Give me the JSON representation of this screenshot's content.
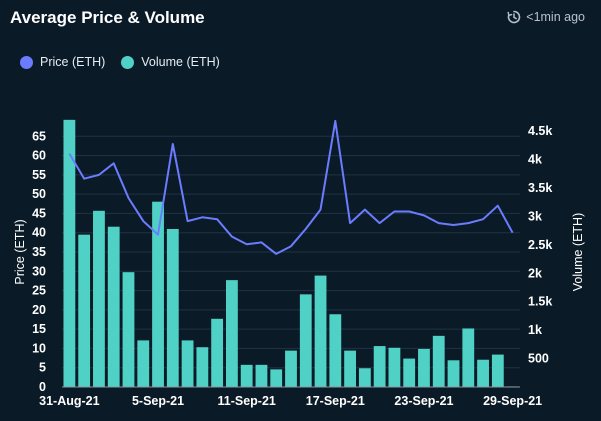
{
  "header": {
    "title": "Average Price & Volume",
    "updated": "<1min ago"
  },
  "colors": {
    "background": "#0b1a27",
    "price": "#6b7cff",
    "volume": "#4fd1c5",
    "grid": "#1f3344",
    "text": "#ffffff"
  },
  "chart_data": {
    "type": "bar",
    "title": "Average Price & Volume",
    "y_label": "Price (ETH)",
    "y2_label": "Volume (ETH)",
    "y_range": [
      0,
      70
    ],
    "y_ticks": [
      0,
      5,
      10,
      15,
      20,
      25,
      30,
      35,
      40,
      45,
      50,
      55,
      60,
      65
    ],
    "y2_range": [
      0,
      4750
    ],
    "y2_ticks": [
      {
        "value": 500,
        "label": "500"
      },
      {
        "value": 1000,
        "label": "1k"
      },
      {
        "value": 1500,
        "label": "1.5k"
      },
      {
        "value": 2000,
        "label": "2k"
      },
      {
        "value": 2500,
        "label": "2.5k"
      },
      {
        "value": 3000,
        "label": "3k"
      },
      {
        "value": 3500,
        "label": "3.5k"
      },
      {
        "value": 4000,
        "label": "4k"
      },
      {
        "value": 4500,
        "label": "4.5k"
      }
    ],
    "x_labels": [
      {
        "index": 0,
        "label": "31-Aug-21"
      },
      {
        "index": 6,
        "label": "5-Sep-21"
      },
      {
        "index": 12,
        "label": "11-Sep-21"
      },
      {
        "index": 18,
        "label": "17-Sep-21"
      },
      {
        "index": 24,
        "label": "23-Sep-21"
      },
      {
        "index": 30,
        "label": "29-Sep-21"
      }
    ],
    "grid": true,
    "legend_position": "top-left",
    "series": [
      {
        "name": "Price (ETH)",
        "type": "line",
        "axis": "left",
        "values": [
          60.5,
          54,
          55,
          58,
          49,
          43,
          39.5,
          63,
          43,
          44,
          43.5,
          39,
          37,
          37.5,
          34.5,
          36.5,
          41,
          46,
          69,
          42.5,
          46,
          42.5,
          45.5,
          45.5,
          44.5,
          42.5,
          42,
          42.5,
          43.5,
          47,
          40
        ]
      },
      {
        "name": "Volume (ETH)",
        "type": "bar",
        "axis": "right",
        "values": [
          4700,
          2680,
          3100,
          2820,
          2020,
          820,
          3260,
          2780,
          820,
          700,
          1200,
          1880,
          390,
          390,
          310,
          640,
          1630,
          1960,
          1280,
          640,
          330,
          720,
          690,
          500,
          670,
          900,
          470,
          1030,
          480,
          570,
          10
        ]
      }
    ]
  }
}
